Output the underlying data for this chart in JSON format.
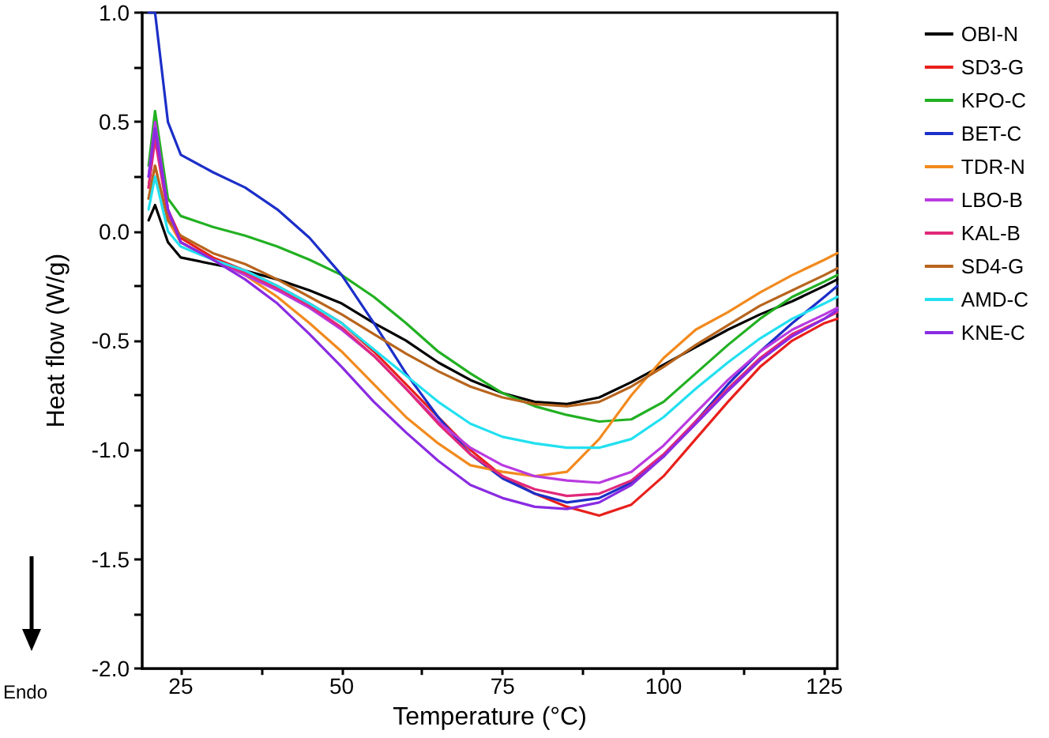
{
  "chart_data": {
    "type": "line",
    "xlabel": "Temperature (°C)",
    "ylabel": "Heat flow (W/g)",
    "annotations": [
      "Endo"
    ],
    "x": [
      20,
      21,
      23,
      25,
      30,
      35,
      40,
      45,
      50,
      55,
      60,
      65,
      70,
      75,
      80,
      85,
      90,
      95,
      100,
      105,
      110,
      115,
      120,
      125,
      127
    ],
    "xlim": [
      19,
      127
    ],
    "xticks": [
      25,
      {
        "value": 37.5,
        "label": null
      },
      50,
      {
        "value": 62.5,
        "label": null
      },
      75,
      {
        "value": 87.5,
        "label": null
      },
      100,
      {
        "value": 112.5,
        "label": null
      },
      125
    ],
    "ylim": [
      -2.0,
      1.0
    ],
    "yticks": [
      {
        "value": -2,
        "label": "-2.0"
      },
      {
        "value": -1.75,
        "label": null
      },
      {
        "value": -1.5,
        "label": "-1.5"
      },
      {
        "value": -1.25,
        "label": null
      },
      {
        "value": -1,
        "label": "-1.0"
      },
      {
        "value": -0.75,
        "label": null
      },
      {
        "value": -0.5,
        "label": "-0.5"
      },
      {
        "value": -0.25,
        "label": null
      },
      {
        "value": 0,
        "label": "0.0"
      },
      {
        "value": 0.25,
        "label": null
      },
      {
        "value": 0.5,
        "label": "0.5"
      },
      {
        "value": 0.75,
        "label": null
      },
      {
        "value": 1,
        "label": "1.0"
      }
    ],
    "grid": false,
    "legend": "right",
    "marker": "none",
    "line_style": "solid",
    "series": [
      {
        "name": "OBI-N",
        "color": "#000000",
        "values": [
          0.05,
          0.12,
          -0.05,
          -0.12,
          -0.15,
          -0.18,
          -0.22,
          -0.27,
          -0.33,
          -0.42,
          -0.5,
          -0.6,
          -0.68,
          -0.74,
          -0.78,
          -0.79,
          -0.76,
          -0.69,
          -0.61,
          -0.53,
          -0.45,
          -0.38,
          -0.32,
          -0.25,
          -0.22
        ]
      },
      {
        "name": "SD3-G",
        "color": "#e8201c",
        "values": [
          0.2,
          0.45,
          0.1,
          -0.03,
          -0.12,
          -0.18,
          -0.25,
          -0.33,
          -0.42,
          -0.55,
          -0.7,
          -0.85,
          -1.0,
          -1.12,
          -1.2,
          -1.26,
          -1.3,
          -1.25,
          -1.12,
          -0.95,
          -0.78,
          -0.62,
          -0.5,
          -0.42,
          -0.4
        ]
      },
      {
        "name": "KPO-C",
        "color": "#22b022",
        "values": [
          0.3,
          0.55,
          0.15,
          0.07,
          0.02,
          -0.02,
          -0.07,
          -0.13,
          -0.2,
          -0.3,
          -0.42,
          -0.55,
          -0.65,
          -0.74,
          -0.8,
          -0.84,
          -0.87,
          -0.86,
          -0.78,
          -0.65,
          -0.52,
          -0.4,
          -0.3,
          -0.23,
          -0.2
        ]
      },
      {
        "name": "BET-C",
        "color": "#1c2fc8",
        "values": [
          1.0,
          1.0,
          0.5,
          0.35,
          0.27,
          0.2,
          0.1,
          -0.03,
          -0.2,
          -0.42,
          -0.65,
          -0.85,
          -1.02,
          -1.13,
          -1.2,
          -1.24,
          -1.22,
          -1.15,
          -1.03,
          -0.87,
          -0.7,
          -0.55,
          -0.42,
          -0.3,
          -0.25
        ]
      },
      {
        "name": "TDR-N",
        "color": "#f28a1e",
        "values": [
          0.15,
          0.3,
          0.05,
          -0.05,
          -0.13,
          -0.2,
          -0.3,
          -0.42,
          -0.55,
          -0.7,
          -0.85,
          -0.97,
          -1.07,
          -1.1,
          -1.12,
          -1.1,
          -0.95,
          -0.75,
          -0.58,
          -0.45,
          -0.37,
          -0.28,
          -0.2,
          -0.13,
          -0.1
        ]
      },
      {
        "name": "LBO-B",
        "color": "#b93ae0",
        "values": [
          0.25,
          0.5,
          0.1,
          -0.05,
          -0.13,
          -0.2,
          -0.27,
          -0.35,
          -0.45,
          -0.57,
          -0.72,
          -0.87,
          -0.99,
          -1.07,
          -1.12,
          -1.14,
          -1.15,
          -1.1,
          -0.98,
          -0.83,
          -0.68,
          -0.55,
          -0.45,
          -0.38,
          -0.35
        ]
      },
      {
        "name": "KAL-B",
        "color": "#e0287a",
        "values": [
          0.2,
          0.42,
          0.08,
          -0.05,
          -0.13,
          -0.19,
          -0.26,
          -0.34,
          -0.44,
          -0.57,
          -0.72,
          -0.88,
          -1.02,
          -1.12,
          -1.18,
          -1.21,
          -1.2,
          -1.14,
          -1.02,
          -0.87,
          -0.72,
          -0.58,
          -0.47,
          -0.4,
          -0.37
        ]
      },
      {
        "name": "SD4-G",
        "color": "#b8651e",
        "values": [
          0.15,
          0.3,
          0.05,
          -0.02,
          -0.1,
          -0.15,
          -0.22,
          -0.3,
          -0.38,
          -0.47,
          -0.56,
          -0.64,
          -0.71,
          -0.76,
          -0.79,
          -0.8,
          -0.78,
          -0.71,
          -0.62,
          -0.52,
          -0.43,
          -0.34,
          -0.27,
          -0.2,
          -0.17
        ]
      },
      {
        "name": "AMD-C",
        "color": "#22e0f0",
        "values": [
          0.1,
          0.25,
          0.0,
          -0.07,
          -0.13,
          -0.18,
          -0.25,
          -0.33,
          -0.42,
          -0.54,
          -0.66,
          -0.78,
          -0.88,
          -0.94,
          -0.97,
          -0.99,
          -0.99,
          -0.95,
          -0.85,
          -0.72,
          -0.6,
          -0.49,
          -0.4,
          -0.33,
          -0.3
        ]
      },
      {
        "name": "KNE-C",
        "color": "#8a2be2",
        "values": [
          0.25,
          0.47,
          0.1,
          -0.05,
          -0.13,
          -0.22,
          -0.33,
          -0.47,
          -0.62,
          -0.78,
          -0.92,
          -1.05,
          -1.16,
          -1.22,
          -1.26,
          -1.27,
          -1.24,
          -1.16,
          -1.03,
          -0.88,
          -0.73,
          -0.59,
          -0.48,
          -0.4,
          -0.36
        ]
      }
    ]
  }
}
